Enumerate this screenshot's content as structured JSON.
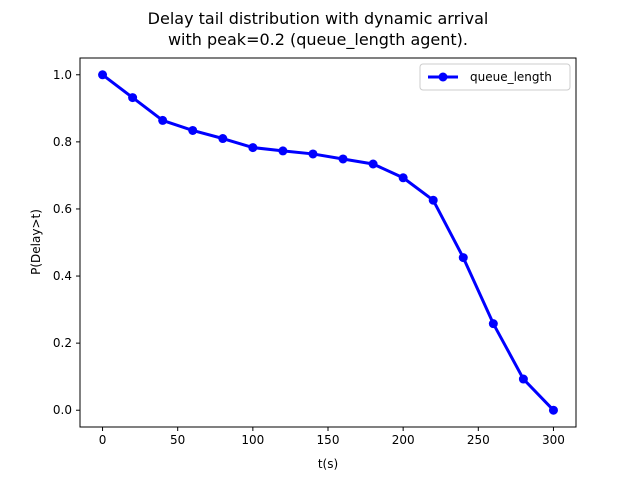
{
  "chart_data": {
    "type": "line",
    "title_lines": [
      "Delay tail distribution with dynamic arrival",
      "with peak=0.2 (queue_length agent)."
    ],
    "xlabel": "t(s)",
    "ylabel": "P(Delay>t)",
    "xlim": [
      -15,
      315
    ],
    "ylim": [
      -0.05,
      1.05
    ],
    "x_ticks": [
      0,
      50,
      100,
      150,
      200,
      250,
      300
    ],
    "y_ticks": [
      0.0,
      0.2,
      0.4,
      0.6,
      0.8,
      1.0
    ],
    "grid": false,
    "legend_position": "top-right",
    "series": [
      {
        "name": "queue_length",
        "color": "#0000ff",
        "x": [
          0,
          20,
          40,
          60,
          80,
          100,
          120,
          140,
          160,
          180,
          200,
          220,
          240,
          260,
          280,
          300
        ],
        "y": [
          1.0,
          0.932,
          0.864,
          0.834,
          0.81,
          0.783,
          0.773,
          0.764,
          0.749,
          0.734,
          0.693,
          0.626,
          0.455,
          0.258,
          0.093,
          0.0
        ]
      }
    ]
  }
}
